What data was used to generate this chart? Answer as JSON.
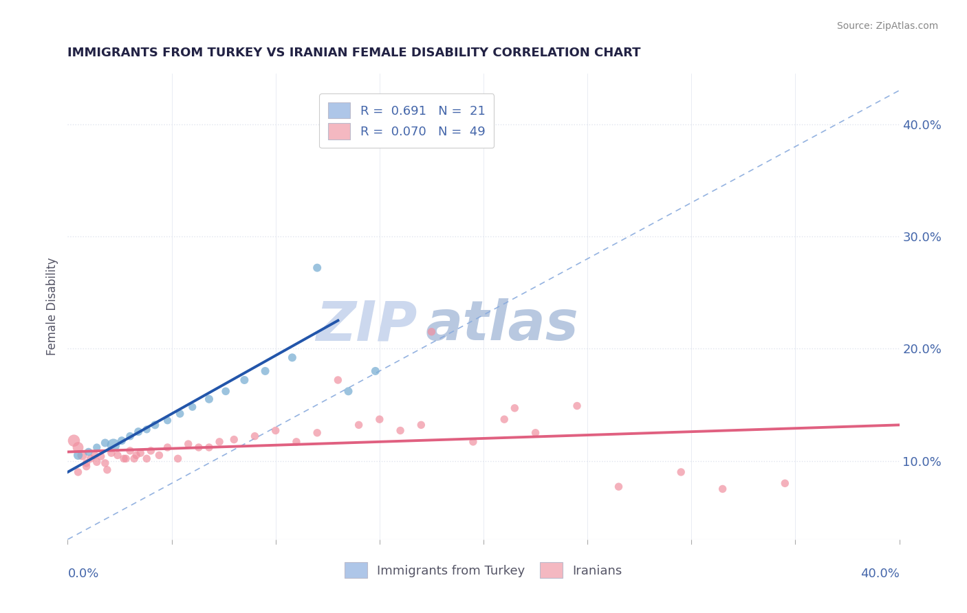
{
  "title": "IMMIGRANTS FROM TURKEY VS IRANIAN FEMALE DISABILITY CORRELATION CHART",
  "source": "Source: ZipAtlas.com",
  "ylabel": "Female Disability",
  "ytick_labels": [
    "10.0%",
    "20.0%",
    "30.0%",
    "40.0%"
  ],
  "ytick_values": [
    0.1,
    0.2,
    0.3,
    0.4
  ],
  "xlim": [
    0.0,
    0.4
  ],
  "ylim": [
    0.03,
    0.445
  ],
  "legend_label1": "Immigrants from Turkey",
  "legend_label2": "Iranians",
  "turkey_color": "#7bafd4",
  "iran_color": "#f090a0",
  "turkey_line_color": "#2255aa",
  "iran_line_color": "#e06080",
  "ref_line_color": "#88aadd",
  "background_color": "#ffffff",
  "grid_color": "#e0e4ee",
  "title_color": "#222244",
  "axis_label_color": "#4466aa",
  "turkey_scatter_x": [
    0.005,
    0.01,
    0.014,
    0.018,
    0.022,
    0.026,
    0.03,
    0.034,
    0.038,
    0.042,
    0.048,
    0.054,
    0.06,
    0.068,
    0.076,
    0.085,
    0.095,
    0.108,
    0.12,
    0.135,
    0.148
  ],
  "turkey_scatter_y": [
    0.105,
    0.108,
    0.112,
    0.116,
    0.114,
    0.118,
    0.122,
    0.126,
    0.128,
    0.132,
    0.136,
    0.142,
    0.148,
    0.155,
    0.162,
    0.172,
    0.18,
    0.192,
    0.272,
    0.162,
    0.18
  ],
  "turkey_scatter_size": [
    90,
    70,
    65,
    75,
    180,
    75,
    70,
    75,
    65,
    75,
    65,
    70,
    65,
    75,
    70,
    75,
    75,
    75,
    75,
    75,
    75
  ],
  "iran_scatter_x": [
    0.003,
    0.005,
    0.007,
    0.009,
    0.011,
    0.013,
    0.016,
    0.018,
    0.021,
    0.024,
    0.027,
    0.03,
    0.032,
    0.035,
    0.038,
    0.04,
    0.044,
    0.048,
    0.053,
    0.058,
    0.063,
    0.068,
    0.073,
    0.08,
    0.09,
    0.1,
    0.11,
    0.12,
    0.13,
    0.14,
    0.15,
    0.16,
    0.17,
    0.175,
    0.195,
    0.21,
    0.215,
    0.225,
    0.245,
    0.265,
    0.295,
    0.315,
    0.345,
    0.005,
    0.009,
    0.014,
    0.019,
    0.028,
    0.033
  ],
  "iran_scatter_y": [
    0.118,
    0.112,
    0.105,
    0.098,
    0.102,
    0.105,
    0.104,
    0.098,
    0.107,
    0.105,
    0.102,
    0.109,
    0.102,
    0.107,
    0.102,
    0.109,
    0.105,
    0.112,
    0.102,
    0.115,
    0.112,
    0.112,
    0.117,
    0.119,
    0.122,
    0.127,
    0.117,
    0.125,
    0.172,
    0.132,
    0.137,
    0.127,
    0.132,
    0.215,
    0.117,
    0.137,
    0.147,
    0.125,
    0.149,
    0.077,
    0.09,
    0.075,
    0.08,
    0.09,
    0.095,
    0.099,
    0.092,
    0.102,
    0.105
  ],
  "iran_scatter_size_big": [
    160,
    130,
    105
  ],
  "watermark_zip": "ZIP",
  "watermark_atlas": "atlas",
  "watermark_color_zip": "#ccd8ee",
  "watermark_color_atlas": "#b8c8e0"
}
